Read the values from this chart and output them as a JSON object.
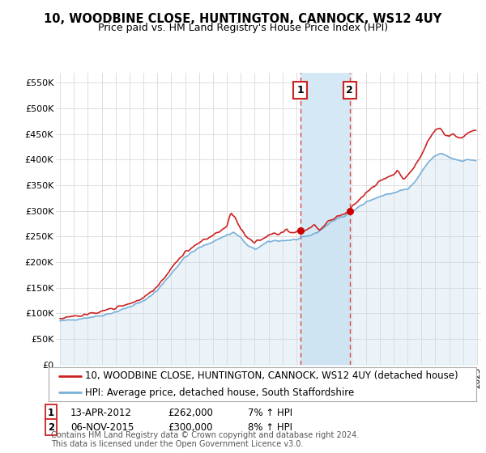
{
  "title": "10, WOODBINE CLOSE, HUNTINGTON, CANNOCK, WS12 4UY",
  "subtitle": "Price paid vs. HM Land Registry's House Price Index (HPI)",
  "legend_line1": "10, WOODBINE CLOSE, HUNTINGTON, CANNOCK, WS12 4UY (detached house)",
  "legend_line2": "HPI: Average price, detached house, South Staffordshire",
  "footnote": "Contains HM Land Registry data © Crown copyright and database right 2024.\nThis data is licensed under the Open Government Licence v3.0.",
  "sale1_label": "1",
  "sale1_date": "13-APR-2012",
  "sale1_price": "£262,000",
  "sale1_hpi": "7% ↑ HPI",
  "sale1_x": 2012.28,
  "sale1_y": 262000,
  "sale2_label": "2",
  "sale2_date": "06-NOV-2015",
  "sale2_price": "£300,000",
  "sale2_hpi": "8% ↑ HPI",
  "sale2_x": 2015.85,
  "sale2_y": 300000,
  "ylim_min": 0,
  "ylim_max": 570000,
  "yticks": [
    0,
    50000,
    100000,
    150000,
    200000,
    250000,
    300000,
    350000,
    400000,
    450000,
    500000,
    550000
  ],
  "ytick_labels": [
    "£0",
    "£50K",
    "£100K",
    "£150K",
    "£200K",
    "£250K",
    "£300K",
    "£350K",
    "£400K",
    "£450K",
    "£500K",
    "£550K"
  ],
  "xlim_min": 1994.7,
  "xlim_max": 2025.3,
  "hpi_color": "#7ab0d8",
  "hpi_fill_color": "#c8dff0",
  "sale_color": "#cc2222",
  "vspan_color": "#d4e8f5",
  "vline_color": "#dd4444",
  "background_color": "#ffffff",
  "grid_color": "#dddddd",
  "sale_dot_color": "#cc0000",
  "title_fontsize": 10.5,
  "subtitle_fontsize": 9,
  "tick_fontsize": 8,
  "legend_fontsize": 8.5,
  "annot_fontsize": 8.5,
  "footnote_fontsize": 7
}
